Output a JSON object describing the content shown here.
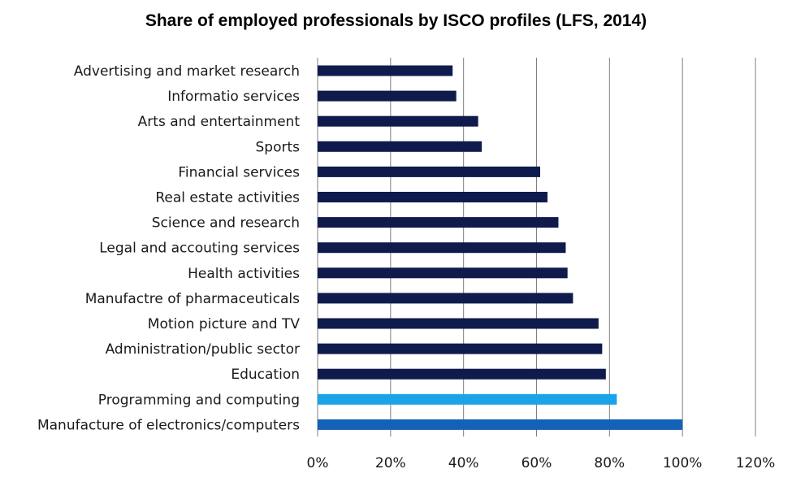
{
  "chart_data": {
    "type": "bar",
    "orientation": "horizontal",
    "title": "Share of employed professionals by ISCO profiles (LFS, 2014)",
    "xlabel": "",
    "ylabel": "",
    "xlim": [
      0,
      120
    ],
    "x_ticks": [
      "0%",
      "20%",
      "40%",
      "60%",
      "80%",
      "100%",
      "120%"
    ],
    "grid": "vertical",
    "legend": "none",
    "categories": [
      "Advertising and market research",
      "Informatio services",
      "Arts and entertainment",
      "Sports",
      "Financial services",
      "Real estate activities",
      "Science and research",
      "Legal and accouting services",
      "Health activities",
      "Manufactre of pharmaceuticals",
      "Motion picture and TV",
      "Administration/public sector",
      "Education",
      "Programming and computing",
      "Manufacture of electronics/computers"
    ],
    "values": [
      37,
      38,
      44,
      45,
      61,
      63,
      66,
      68,
      68.5,
      70,
      77,
      78,
      79,
      82,
      100
    ],
    "colors": [
      "#0f1b4c",
      "#0f1b4c",
      "#0f1b4c",
      "#0f1b4c",
      "#0f1b4c",
      "#0f1b4c",
      "#0f1b4c",
      "#0f1b4c",
      "#0f1b4c",
      "#0f1b4c",
      "#0f1b4c",
      "#0f1b4c",
      "#0f1b4c",
      "#1aa3e8",
      "#1462b8"
    ]
  }
}
